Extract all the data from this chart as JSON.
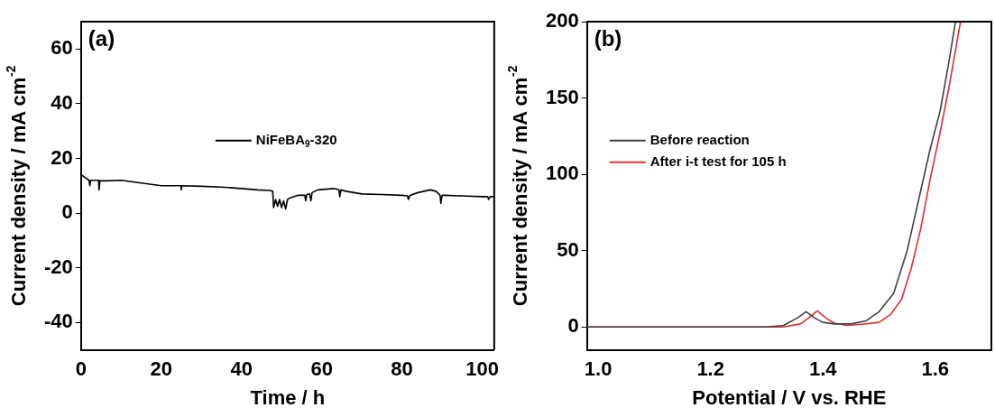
{
  "chart_data": [
    {
      "type": "line",
      "title": "(a)",
      "xlabel": "Time / h",
      "ylabel": "Current density / mA cm$^{-2}$",
      "xlim": [
        0,
        103
      ],
      "xticks": [
        0,
        20,
        40,
        60,
        80,
        100
      ],
      "ylim": [
        -50,
        70
      ],
      "yticks": [
        -40,
        -20,
        0,
        20,
        40,
        60
      ],
      "grid": false,
      "legend": "center",
      "marker": "none",
      "line_style": "solid",
      "series": [
        {
          "name": "NiFeBA$_{9}$-320",
          "color": "#000000",
          "x": [
            0,
            1,
            2,
            2.2,
            2.4,
            4.4,
            4.5,
            4.7,
            6,
            10,
            15,
            20,
            24.9,
            25,
            25.1,
            30,
            35,
            40,
            44,
            47,
            47.8,
            48,
            48.5,
            49,
            49.5,
            50,
            50.5,
            51,
            51.5,
            52,
            54,
            55.8,
            56,
            56.3,
            57,
            57.3,
            57.6,
            59,
            63,
            64.3,
            64.5,
            64.8,
            66,
            70,
            75,
            80,
            81.4,
            81.6,
            82,
            84,
            87,
            88.5,
            89.5,
            89.7,
            90,
            90.5,
            95,
            100,
            101.4,
            101.6,
            102,
            103
          ],
          "values": [
            14,
            13,
            12,
            10,
            12,
            12,
            8.5,
            11.8,
            11.8,
            12,
            11,
            10,
            10,
            8.5,
            10,
            9.8,
            9.5,
            9,
            8.5,
            8.3,
            8,
            2,
            5,
            2.5,
            5,
            2,
            4.5,
            1.5,
            5,
            5.5,
            6.5,
            6.5,
            4.5,
            6.8,
            7,
            4.5,
            7.5,
            8.5,
            9,
            8.5,
            6,
            8.5,
            8,
            7,
            6.8,
            6.5,
            6.3,
            5,
            6.5,
            7.5,
            8.5,
            8,
            6.5,
            3.5,
            6.5,
            6.5,
            6.3,
            6,
            6,
            5,
            6,
            6
          ]
        }
      ]
    },
    {
      "type": "line",
      "title": "(b)",
      "xlabel": "Potential / V vs. RHE",
      "ylabel": "Current density / mA cm$^{-2}$",
      "xlim": [
        0.98,
        1.7
      ],
      "xticks": [
        {
          "value": 1.0,
          "label": "1.0"
        },
        1.2,
        1.4,
        1.6
      ],
      "ylim": [
        -15,
        200
      ],
      "yticks": [
        0,
        50,
        100,
        150,
        200
      ],
      "grid": false,
      "legend": "center left",
      "marker": "none",
      "line_style": "solid",
      "series": [
        {
          "name": "Before reaction",
          "color": "#404040",
          "x": [
            0.98,
            1.3,
            1.33,
            1.355,
            1.37,
            1.385,
            1.4,
            1.42,
            1.45,
            1.477,
            1.5,
            1.526,
            1.55,
            1.574,
            1.59,
            1.609,
            1.625,
            1.636
          ],
          "values": [
            0,
            0,
            1,
            6,
            10,
            6,
            3,
            2,
            2,
            4,
            10,
            22,
            50,
            89,
            115,
            142,
            175,
            200
          ]
        },
        {
          "name": "After i-t test for 105 h",
          "color": "#e03030",
          "x": [
            0.98,
            1.33,
            1.36,
            1.375,
            1.39,
            1.405,
            1.42,
            1.442,
            1.47,
            1.5,
            1.52,
            1.54,
            1.557,
            1.574,
            1.59,
            1.609,
            1.625,
            1.645
          ],
          "values": [
            0,
            0,
            2,
            6,
            10.5,
            6,
            2.5,
            1,
            1.8,
            3,
            8,
            18,
            38,
            64,
            95,
            128,
            158,
            200
          ]
        }
      ]
    }
  ]
}
